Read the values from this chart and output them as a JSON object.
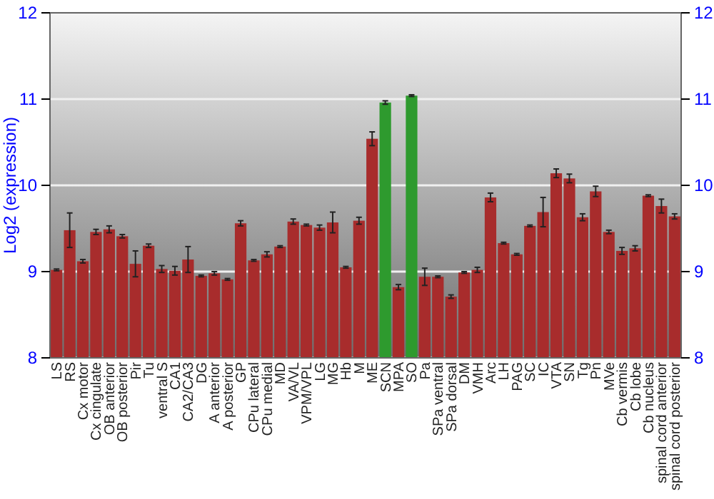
{
  "chart_data": {
    "type": "bar",
    "ylabel": "Log2 (expression)",
    "categories": [
      "LS",
      "RS",
      "Cx motor",
      "Cx cingulate",
      "OB anterior",
      "OB posterior",
      "Pir",
      "Tu",
      "ventral S",
      "CA1",
      "CA2/CA3",
      "DG",
      "A anterior",
      "A posterior",
      "GP",
      "CPu lateral",
      "CPu medial",
      "MD",
      "VA/VL",
      "VPM/VPL",
      "LG",
      "MG",
      "Hb",
      "M",
      "ME",
      "SCN",
      "MPA",
      "SO",
      "Pa",
      "SPa ventral",
      "SPa dorsal",
      "DM",
      "VMH",
      "Arc",
      "LH",
      "PAG",
      "SC",
      "IC",
      "VTA",
      "SN",
      "Tg",
      "Pn",
      "MVe",
      "Cb vermis",
      "Cb lobe",
      "Cb nucleus",
      "spinal cord anterior",
      "spinal cord posterior"
    ],
    "values": [
      9.02,
      9.48,
      9.12,
      9.46,
      9.49,
      9.41,
      9.09,
      9.3,
      9.03,
      9.01,
      9.14,
      8.95,
      8.98,
      8.91,
      9.56,
      9.13,
      9.2,
      9.29,
      9.58,
      9.54,
      9.51,
      9.57,
      9.05,
      9.59,
      10.54,
      10.96,
      8.82,
      11.04,
      8.94,
      8.94,
      8.71,
      8.99,
      9.02,
      9.86,
      9.33,
      9.2,
      9.53,
      9.69,
      10.14,
      10.08,
      9.63,
      9.93,
      9.46,
      9.24,
      9.27,
      9.88,
      9.76,
      9.64
    ],
    "errors": [
      0.01,
      0.2,
      0.02,
      0.03,
      0.04,
      0.02,
      0.15,
      0.02,
      0.04,
      0.05,
      0.15,
      0.01,
      0.02,
      0.01,
      0.03,
      0.01,
      0.03,
      0.01,
      0.03,
      0.01,
      0.03,
      0.12,
      0.01,
      0.04,
      0.08,
      0.02,
      0.03,
      0.01,
      0.1,
      0.01,
      0.02,
      0.01,
      0.03,
      0.05,
      0.01,
      0.01,
      0.01,
      0.17,
      0.05,
      0.05,
      0.04,
      0.06,
      0.02,
      0.04,
      0.03,
      0.01,
      0.08,
      0.03
    ],
    "colors": [
      "#a82c2c",
      "#a82c2c",
      "#a82c2c",
      "#a82c2c",
      "#a82c2c",
      "#a82c2c",
      "#a82c2c",
      "#a82c2c",
      "#a82c2c",
      "#a82c2c",
      "#a82c2c",
      "#a82c2c",
      "#a82c2c",
      "#a82c2c",
      "#a82c2c",
      "#a82c2c",
      "#a82c2c",
      "#a82c2c",
      "#a82c2c",
      "#a82c2c",
      "#a82c2c",
      "#a82c2c",
      "#a82c2c",
      "#a82c2c",
      "#a82c2c",
      "#2e9a2e",
      "#a82c2c",
      "#2e9a2e",
      "#a82c2c",
      "#a82c2c",
      "#a82c2c",
      "#a82c2c",
      "#a82c2c",
      "#a82c2c",
      "#a82c2c",
      "#a82c2c",
      "#a82c2c",
      "#a82c2c",
      "#a82c2c",
      "#a82c2c",
      "#a82c2c",
      "#a82c2c",
      "#a82c2c",
      "#a82c2c",
      "#a82c2c",
      "#a82c2c",
      "#a82c2c",
      "#a82c2c"
    ],
    "ylim": [
      8,
      12
    ],
    "yticks": [
      8,
      9,
      10,
      11,
      12
    ],
    "y2lim": [
      8,
      12
    ],
    "y2ticks": [
      8,
      9,
      10,
      11,
      12
    ],
    "grid": "y"
  }
}
